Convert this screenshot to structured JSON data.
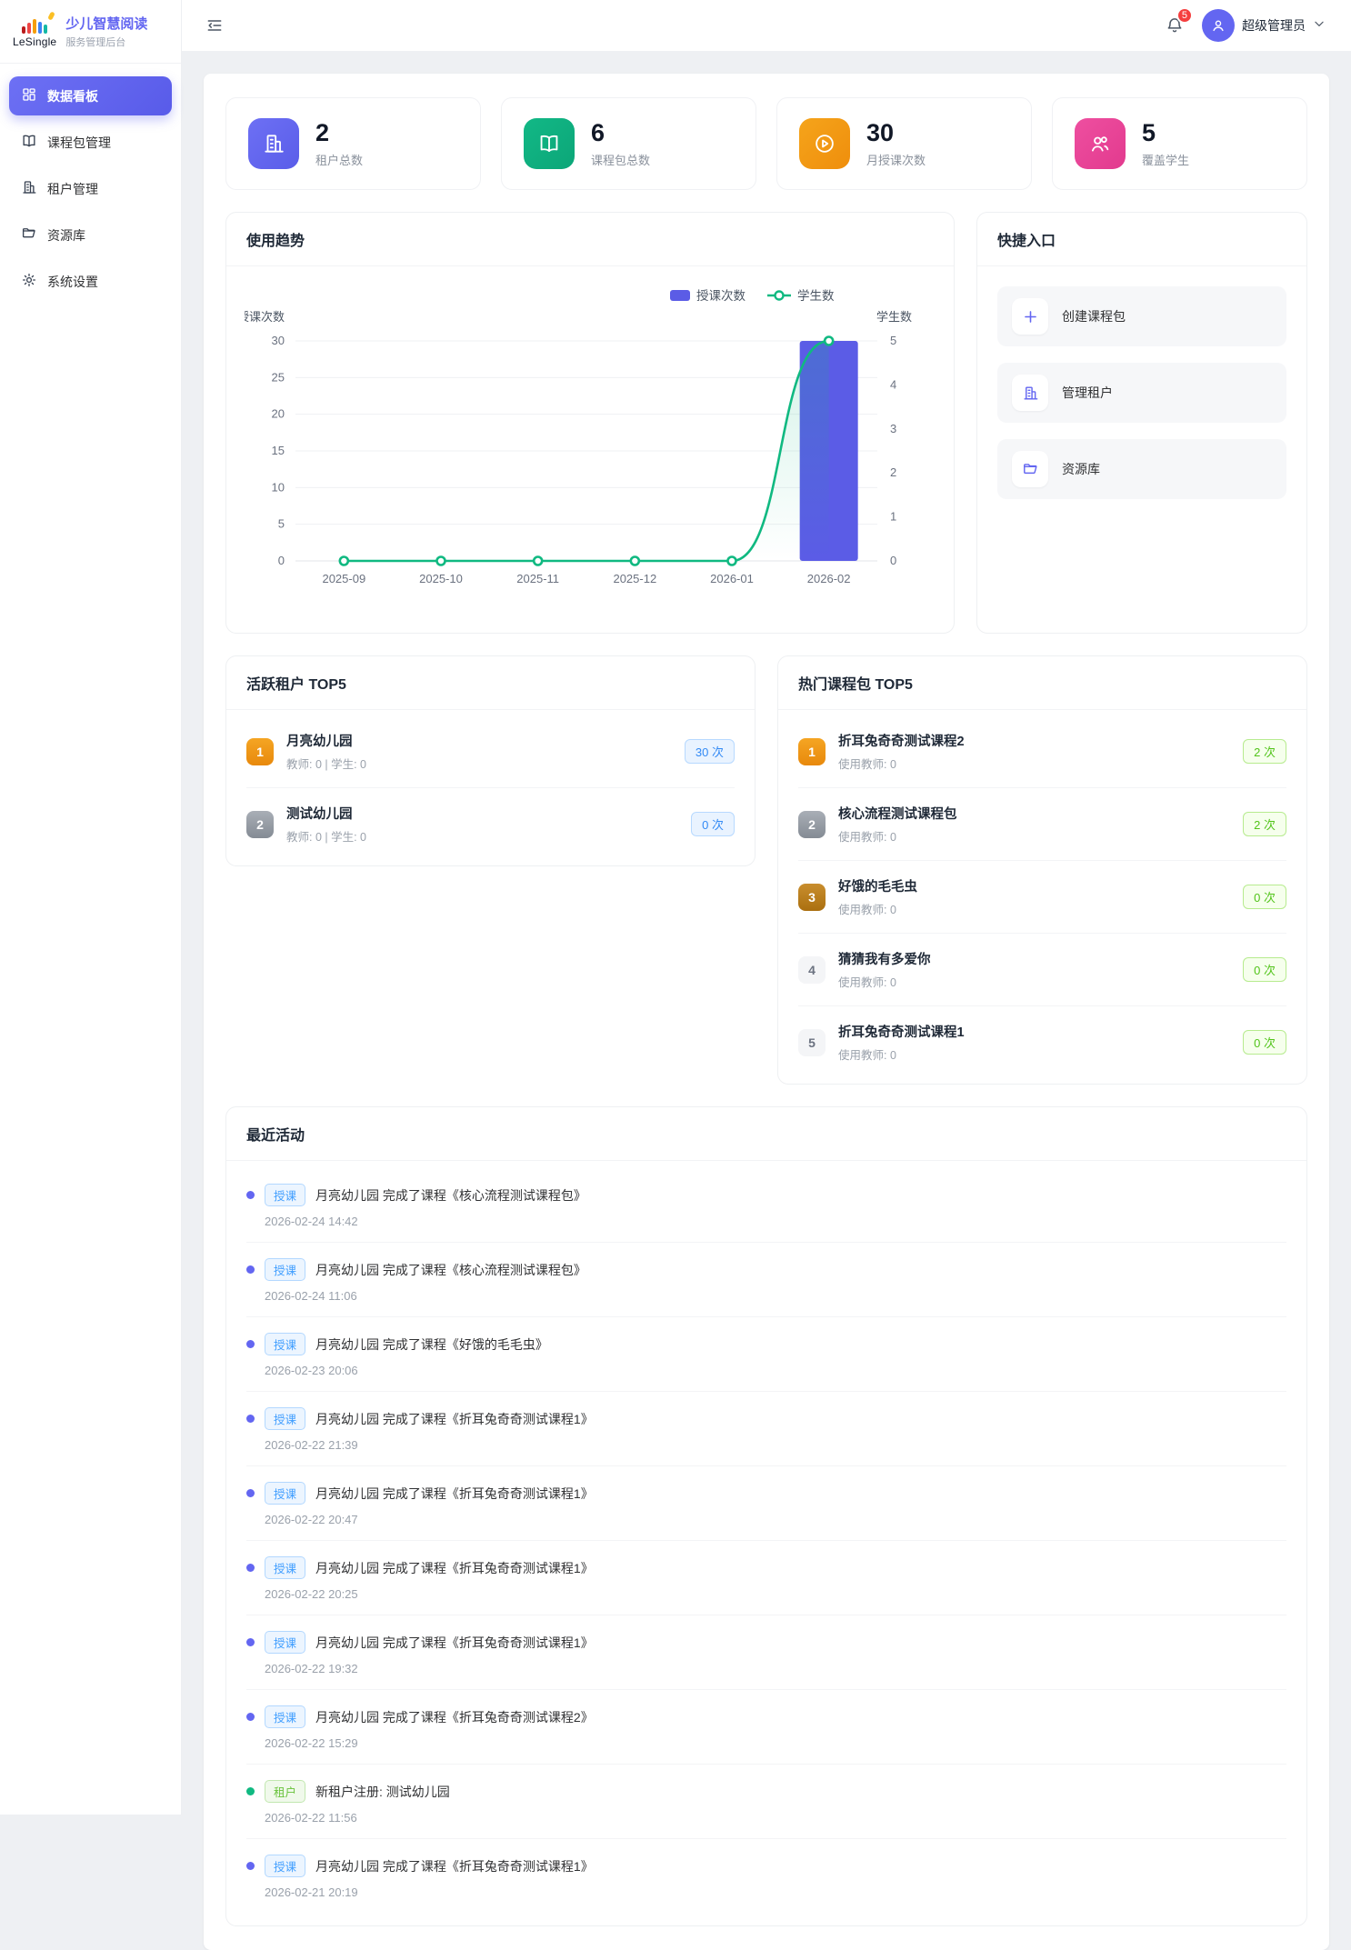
{
  "sidebar": {
    "logo": {
      "brand": "LeSingle",
      "title": "少儿智慧阅读",
      "subtitle": "服务管理后台"
    },
    "items": [
      {
        "label": "数据看板",
        "icon": "dashboard-grid-icon",
        "active": true
      },
      {
        "label": "课程包管理",
        "icon": "open-book-icon",
        "active": false
      },
      {
        "label": "租户管理",
        "icon": "building-icon",
        "active": false
      },
      {
        "label": "资源库",
        "icon": "folder-icon",
        "active": false
      },
      {
        "label": "系统设置",
        "icon": "gear-icon",
        "active": false
      }
    ]
  },
  "header": {
    "notification_count": "5",
    "user_name": "超级管理员"
  },
  "stats": [
    {
      "value": "2",
      "label": "租户总数",
      "icon": "building-icon",
      "color": "#6366f1"
    },
    {
      "value": "6",
      "label": "课程包总数",
      "icon": "open-book-icon",
      "color": "#10b981"
    },
    {
      "value": "30",
      "label": "月授课次数",
      "icon": "play-circle-icon",
      "color": "#f59e0b"
    },
    {
      "value": "5",
      "label": "覆盖学生",
      "icon": "users-icon",
      "color": "#ec4899"
    }
  ],
  "trend": {
    "title": "使用趋势"
  },
  "chart_data": {
    "type": "bar+line",
    "categories": [
      "2025-09",
      "2025-10",
      "2025-11",
      "2025-12",
      "2026-01",
      "2026-02"
    ],
    "series": [
      {
        "name": "授课次数",
        "type": "bar",
        "axis": "left",
        "values": [
          0,
          0,
          0,
          0,
          0,
          30
        ],
        "color": "#5b5ce6"
      },
      {
        "name": "学生数",
        "type": "line",
        "axis": "right",
        "values": [
          0,
          0,
          0,
          0,
          0,
          5
        ],
        "color": "#10b981"
      }
    ],
    "left_axis": {
      "name": "授课次数",
      "min": 0,
      "max": 30,
      "step": 5
    },
    "right_axis": {
      "name": "学生数",
      "min": 0,
      "max": 5,
      "step": 1
    },
    "legend_position": "top-right",
    "grid": true
  },
  "quick": {
    "title": "快捷入口",
    "items": [
      {
        "label": "创建课程包",
        "icon": "plus-icon"
      },
      {
        "label": "管理租户",
        "icon": "building-icon"
      },
      {
        "label": "资源库",
        "icon": "folder-icon"
      }
    ]
  },
  "tenants": {
    "title": "活跃租户 TOP5",
    "items": [
      {
        "rank": "1",
        "name": "月亮幼儿园",
        "meta": "教师: 0 | 学生: 0",
        "count": "30 次"
      },
      {
        "rank": "2",
        "name": "测试幼儿园",
        "meta": "教师: 0 | 学生: 0",
        "count": "0 次"
      }
    ]
  },
  "packages": {
    "title": "热门课程包 TOP5",
    "items": [
      {
        "rank": "1",
        "name": "折耳兔奇奇测试课程2",
        "meta": "使用教师: 0",
        "count": "2 次"
      },
      {
        "rank": "2",
        "name": "核心流程测试课程包",
        "meta": "使用教师: 0",
        "count": "2 次"
      },
      {
        "rank": "3",
        "name": "好饿的毛毛虫",
        "meta": "使用教师: 0",
        "count": "0 次"
      },
      {
        "rank": "4",
        "name": "猜猜我有多爱你",
        "meta": "使用教师: 0",
        "count": "0 次"
      },
      {
        "rank": "5",
        "name": "折耳兔奇奇测试课程1",
        "meta": "使用教师: 0",
        "count": "0 次"
      }
    ]
  },
  "activities": {
    "title": "最近活动",
    "items": [
      {
        "type": "授课",
        "text": "月亮幼儿园 完成了课程《核心流程测试课程包》",
        "time": "2026-02-24 14:42"
      },
      {
        "type": "授课",
        "text": "月亮幼儿园 完成了课程《核心流程测试课程包》",
        "time": "2026-02-24 11:06"
      },
      {
        "type": "授课",
        "text": "月亮幼儿园 完成了课程《好饿的毛毛虫》",
        "time": "2026-02-23 20:06"
      },
      {
        "type": "授课",
        "text": "月亮幼儿园 完成了课程《折耳兔奇奇测试课程1》",
        "time": "2026-02-22 21:39"
      },
      {
        "type": "授课",
        "text": "月亮幼儿园 完成了课程《折耳兔奇奇测试课程1》",
        "time": "2026-02-22 20:47"
      },
      {
        "type": "授课",
        "text": "月亮幼儿园 完成了课程《折耳兔奇奇测试课程1》",
        "time": "2026-02-22 20:25"
      },
      {
        "type": "授课",
        "text": "月亮幼儿园 完成了课程《折耳兔奇奇测试课程1》",
        "time": "2026-02-22 19:32"
      },
      {
        "type": "授课",
        "text": "月亮幼儿园 完成了课程《折耳兔奇奇测试课程2》",
        "time": "2026-02-22 15:29"
      },
      {
        "type": "租户",
        "text": "新租户注册: 测试幼儿园",
        "time": "2026-02-22 11:56"
      },
      {
        "type": "授课",
        "text": "月亮幼儿园 完成了课程《折耳兔奇奇测试课程1》",
        "time": "2026-02-21 20:19"
      }
    ]
  },
  "colors": {
    "primary": "#6366f1",
    "green": "#10b981",
    "orange": "#f59e0b",
    "pink": "#ec4899",
    "bar": "#5b5ce6",
    "line": "#10b981",
    "badge_blue": "#409eff",
    "badge_green": "#67c23a",
    "notification_red": "#f53f3f"
  }
}
